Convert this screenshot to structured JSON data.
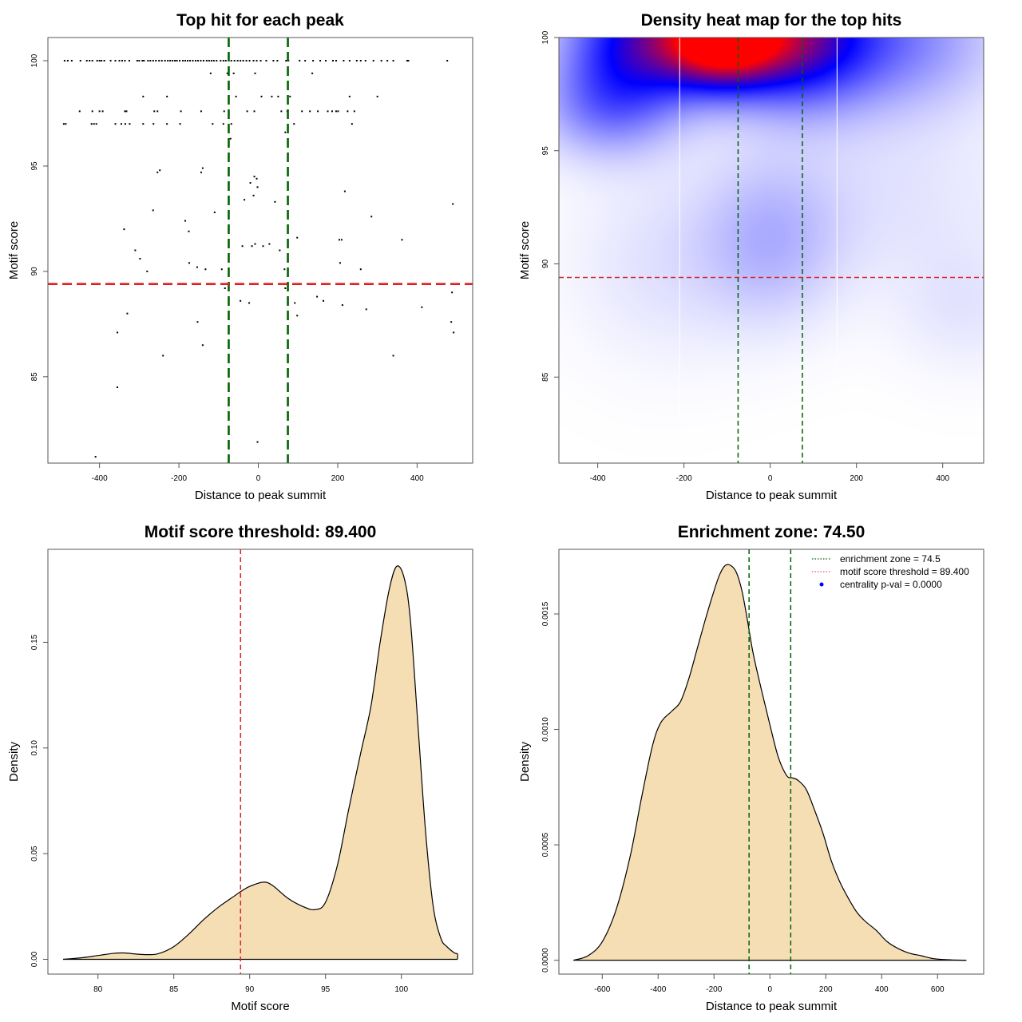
{
  "chart_data": [
    {
      "id": "scatter",
      "type": "scatter",
      "title": "Top hit for each peak",
      "xlabel": "Distance to peak summit",
      "ylabel": "Motif score",
      "xlim": [
        -530,
        540
      ],
      "ylim": [
        80.9,
        101.1
      ],
      "xticks": [
        -400,
        -200,
        0,
        200,
        400
      ],
      "xtick_labels": [
        "-400",
        "-200",
        "0",
        "200",
        "400"
      ],
      "yticks": [
        85,
        90,
        95,
        100
      ],
      "ytick_labels": [
        "85",
        "90",
        "95",
        "100"
      ],
      "vlines": [
        {
          "x": -74.5,
          "color": "#006400",
          "style": "dashed"
        },
        {
          "x": 74.5,
          "color": "#006400",
          "style": "dashed"
        }
      ],
      "hlines": [
        {
          "y": 89.4,
          "color": "#dd2222",
          "style": "dashed"
        }
      ],
      "points": [
        [
          -488,
          100
        ],
        [
          -480,
          100
        ],
        [
          -470,
          100
        ],
        [
          -448,
          100
        ],
        [
          -432,
          100
        ],
        [
          -425,
          100
        ],
        [
          -418,
          100
        ],
        [
          -406,
          100
        ],
        [
          -400,
          100
        ],
        [
          -395,
          100
        ],
        [
          -388,
          100
        ],
        [
          -372,
          100
        ],
        [
          -360,
          100
        ],
        [
          -350,
          100
        ],
        [
          -343,
          100
        ],
        [
          -336,
          100
        ],
        [
          -325,
          100
        ],
        [
          -305,
          100
        ],
        [
          -300,
          100
        ],
        [
          -292,
          100
        ],
        [
          -288,
          100
        ],
        [
          -278,
          100
        ],
        [
          -272,
          100
        ],
        [
          -265,
          100
        ],
        [
          -258,
          100
        ],
        [
          -250,
          100
        ],
        [
          -243,
          100
        ],
        [
          -235,
          100
        ],
        [
          -228,
          100
        ],
        [
          -222,
          100
        ],
        [
          -216,
          100
        ],
        [
          -210,
          100
        ],
        [
          -205,
          100
        ],
        [
          -198,
          100
        ],
        [
          -190,
          100
        ],
        [
          -184,
          100
        ],
        [
          -178,
          100
        ],
        [
          -172,
          100
        ],
        [
          -165,
          100
        ],
        [
          -158,
          100
        ],
        [
          -152,
          100
        ],
        [
          -145,
          100
        ],
        [
          -138,
          100
        ],
        [
          -130,
          100
        ],
        [
          -124,
          100
        ],
        [
          -118,
          100
        ],
        [
          -112,
          100
        ],
        [
          -105,
          100
        ],
        [
          -95,
          100
        ],
        [
          -88,
          100
        ],
        [
          -82,
          100
        ],
        [
          -75,
          100
        ],
        [
          -68,
          100
        ],
        [
          -60,
          100
        ],
        [
          -52,
          100
        ],
        [
          -45,
          100
        ],
        [
          -38,
          100
        ],
        [
          -30,
          100
        ],
        [
          -22,
          100
        ],
        [
          -12,
          100
        ],
        [
          -4,
          100
        ],
        [
          6,
          100
        ],
        [
          20,
          100
        ],
        [
          38,
          100
        ],
        [
          48,
          100
        ],
        [
          70,
          100
        ],
        [
          76,
          100
        ],
        [
          104,
          100
        ],
        [
          118,
          100
        ],
        [
          138,
          100
        ],
        [
          156,
          100
        ],
        [
          170,
          100
        ],
        [
          188,
          100
        ],
        [
          196,
          100
        ],
        [
          215,
          100
        ],
        [
          230,
          100
        ],
        [
          248,
          100
        ],
        [
          258,
          100
        ],
        [
          270,
          100
        ],
        [
          290,
          100
        ],
        [
          310,
          100
        ],
        [
          325,
          100
        ],
        [
          340,
          100
        ],
        [
          375,
          100
        ],
        [
          378,
          100
        ],
        [
          476,
          100
        ],
        [
          -120,
          99.4
        ],
        [
          -78,
          99.4
        ],
        [
          -62,
          99.4
        ],
        [
          -8,
          99.4
        ],
        [
          136,
          99.4
        ],
        [
          -290,
          98.3
        ],
        [
          -230,
          98.3
        ],
        [
          -56,
          98.3
        ],
        [
          8,
          98.3
        ],
        [
          34,
          98.3
        ],
        [
          50,
          98.3
        ],
        [
          80,
          98.3
        ],
        [
          230,
          98.3
        ],
        [
          300,
          98.3
        ],
        [
          -450,
          97.6
        ],
        [
          -418,
          97.6
        ],
        [
          -400,
          97.6
        ],
        [
          -392,
          97.6
        ],
        [
          -336,
          97.6
        ],
        [
          -332,
          97.6
        ],
        [
          -262,
          97.6
        ],
        [
          -254,
          97.6
        ],
        [
          -195,
          97.6
        ],
        [
          -144,
          97.6
        ],
        [
          -86,
          97.6
        ],
        [
          -28,
          97.6
        ],
        [
          -10,
          97.6
        ],
        [
          58,
          97.6
        ],
        [
          73,
          97.6
        ],
        [
          110,
          97.6
        ],
        [
          130,
          97.6
        ],
        [
          150,
          97.6
        ],
        [
          175,
          97.6
        ],
        [
          186,
          97.6
        ],
        [
          196,
          97.6
        ],
        [
          201,
          97.6
        ],
        [
          225,
          97.6
        ],
        [
          242,
          97.6
        ],
        [
          -490,
          97
        ],
        [
          -485,
          97
        ],
        [
          -420,
          97
        ],
        [
          -414,
          97
        ],
        [
          -408,
          97
        ],
        [
          -360,
          97
        ],
        [
          -345,
          97
        ],
        [
          -335,
          97
        ],
        [
          -324,
          97
        ],
        [
          -290,
          97
        ],
        [
          -264,
          97
        ],
        [
          -230,
          97
        ],
        [
          -197,
          97
        ],
        [
          -115,
          97
        ],
        [
          -88,
          97
        ],
        [
          -68,
          97
        ],
        [
          -70,
          96.3
        ],
        [
          68,
          96.6
        ],
        [
          90,
          97
        ],
        [
          236,
          97
        ],
        [
          -254,
          94.7
        ],
        [
          -248,
          94.8
        ],
        [
          -144,
          94.7
        ],
        [
          -140,
          94.9
        ],
        [
          -10,
          94.5
        ],
        [
          -4,
          94.4
        ],
        [
          -20,
          94.2
        ],
        [
          -2,
          94.0
        ],
        [
          218,
          93.8
        ],
        [
          490,
          93.2
        ],
        [
          -12,
          93.6
        ],
        [
          -35,
          93.4
        ],
        [
          42,
          93.3
        ],
        [
          -265,
          92.9
        ],
        [
          -110,
          92.8
        ],
        [
          285,
          92.6
        ],
        [
          -184,
          92.4
        ],
        [
          -175,
          91.9
        ],
        [
          -338,
          92.0
        ],
        [
          204,
          91.5
        ],
        [
          210,
          91.5
        ],
        [
          362,
          91.5
        ],
        [
          98,
          91.6
        ],
        [
          -310,
          91.0
        ],
        [
          -298,
          90.6
        ],
        [
          -280,
          90.0
        ],
        [
          -174,
          90.4
        ],
        [
          -154,
          90.2
        ],
        [
          -133,
          90.1
        ],
        [
          -92,
          90.1
        ],
        [
          -40,
          91.2
        ],
        [
          -16,
          91.2
        ],
        [
          -8,
          91.3
        ],
        [
          12,
          91.2
        ],
        [
          28,
          91.3
        ],
        [
          54,
          91.0
        ],
        [
          66,
          90.1
        ],
        [
          206,
          90.4
        ],
        [
          258,
          90.1
        ],
        [
          -84,
          89.2
        ],
        [
          68,
          89.2
        ],
        [
          488,
          89.0
        ],
        [
          -45,
          88.6
        ],
        [
          -23,
          88.5
        ],
        [
          92,
          88.5
        ],
        [
          148,
          88.8
        ],
        [
          164,
          88.6
        ],
        [
          212,
          88.4
        ],
        [
          272,
          88.2
        ],
        [
          412,
          88.3
        ],
        [
          -330,
          88.0
        ],
        [
          -153,
          87.6
        ],
        [
          98,
          87.9
        ],
        [
          486,
          87.6
        ],
        [
          -355,
          87.1
        ],
        [
          492,
          87.1
        ],
        [
          -140,
          86.5
        ],
        [
          -240,
          86.0
        ],
        [
          340,
          86.0
        ],
        [
          -355,
          84.5
        ],
        [
          -2,
          81.9
        ],
        [
          -410,
          81.2
        ]
      ]
    },
    {
      "id": "heatmap",
      "type": "heatmap",
      "title": "Density heat map for the top hits",
      "xlabel": "Distance to peak summit",
      "ylabel": "Motif score",
      "xlim": [
        -490,
        495
      ],
      "ylim": [
        81.2,
        100
      ],
      "xticks": [
        -400,
        -200,
        0,
        200,
        400
      ],
      "xtick_labels": [
        "-400",
        "-200",
        "0",
        "200",
        "400"
      ],
      "yticks": [
        85,
        90,
        95,
        100
      ],
      "ytick_labels": [
        "85",
        "90",
        "95",
        "100"
      ],
      "color_scale": [
        "#ffffff",
        "#0000ff",
        "#ff0000"
      ],
      "density_peaks": [
        {
          "x": -110,
          "y": 100,
          "sx": 95,
          "sy": 1.5,
          "w": 1.0
        },
        {
          "x": -300,
          "y": 100,
          "sx": 120,
          "sy": 2.0,
          "w": 0.55
        },
        {
          "x": 60,
          "y": 100,
          "sx": 110,
          "sy": 2.0,
          "w": 0.5
        },
        {
          "x": 250,
          "y": 100,
          "sx": 180,
          "sy": 2.2,
          "w": 0.3
        },
        {
          "x": -380,
          "y": 97,
          "sx": 110,
          "sy": 1.6,
          "w": 0.25
        },
        {
          "x": 0,
          "y": 91,
          "sx": 110,
          "sy": 2.5,
          "w": 0.14
        },
        {
          "x": -250,
          "y": 90,
          "sx": 150,
          "sy": 3.0,
          "w": 0.06
        },
        {
          "x": 450,
          "y": 88,
          "sx": 110,
          "sy": 2.0,
          "w": 0.05
        },
        {
          "x": 250,
          "y": 93,
          "sx": 250,
          "sy": 3.0,
          "w": 0.06
        }
      ],
      "white_vlines": [
        -210,
        155
      ],
      "vlines": [
        {
          "x": -74.5,
          "color": "#006400",
          "style": "dashed"
        },
        {
          "x": 74.5,
          "color": "#006400",
          "style": "dashed"
        }
      ],
      "hlines": [
        {
          "y": 89.4,
          "color": "#dd2222",
          "style": "dashed"
        }
      ]
    },
    {
      "id": "score-density",
      "type": "area",
      "title": "Motif score threshold: 89.400",
      "xlabel": "Motif score",
      "ylabel": "Density",
      "xlim": [
        76.7,
        104.7
      ],
      "ylim": [
        -0.007,
        0.194
      ],
      "xticks": [
        80,
        85,
        90,
        95,
        100
      ],
      "xtick_labels": [
        "80",
        "85",
        "90",
        "95",
        "100"
      ],
      "yticks": [
        0.0,
        0.05,
        0.1,
        0.15
      ],
      "ytick_labels": [
        "0.00",
        "0.05",
        "0.10",
        "0.15"
      ],
      "fill_color": "#f5deb3",
      "vlines": [
        {
          "x": 89.4,
          "color": "#dd2222",
          "style": "dashed"
        }
      ],
      "x": [
        77.7,
        79,
        80,
        81,
        81.7,
        82.5,
        83.3,
        84,
        85,
        86,
        87,
        88,
        89,
        89.4,
        90,
        90.9,
        91.5,
        92.5,
        93.5,
        94.3,
        95,
        95.8,
        96.5,
        97.3,
        98,
        98.6,
        99.2,
        99.7,
        100.2,
        100.6,
        101.1,
        101.6,
        102.1,
        102.6,
        103,
        103.5,
        103.7,
        103.7
      ],
      "y": [
        0.0,
        0.0008,
        0.0018,
        0.0028,
        0.003,
        0.0025,
        0.0022,
        0.0027,
        0.006,
        0.012,
        0.019,
        0.025,
        0.03,
        0.032,
        0.0345,
        0.0365,
        0.035,
        0.029,
        0.025,
        0.0235,
        0.027,
        0.045,
        0.07,
        0.097,
        0.12,
        0.15,
        0.175,
        0.186,
        0.18,
        0.16,
        0.11,
        0.06,
        0.025,
        0.01,
        0.006,
        0.003,
        0.0025,
        0.0
      ]
    },
    {
      "id": "distance-density",
      "type": "area",
      "title": "Enrichment zone: 74.50",
      "xlabel": "Distance to peak summit",
      "ylabel": "Density",
      "xlim": [
        -755,
        765
      ],
      "ylim": [
        -6e-05,
        0.00178
      ],
      "xticks": [
        -600,
        -400,
        -200,
        0,
        200,
        400,
        600
      ],
      "xtick_labels": [
        "-600",
        "-400",
        "-200",
        "0",
        "200",
        "400",
        "600"
      ],
      "yticks": [
        0.0,
        0.0005,
        0.001,
        0.0015
      ],
      "ytick_labels": [
        "0.0000",
        "0.0005",
        "0.0010",
        "0.0015"
      ],
      "fill_color": "#f5deb3",
      "vlines": [
        {
          "x": -74.5,
          "color": "#006400",
          "style": "dashed"
        },
        {
          "x": 74.5,
          "color": "#006400",
          "style": "dashed"
        }
      ],
      "x": [
        -703,
        -650,
        -600,
        -550,
        -500,
        -460,
        -420,
        -390,
        -350,
        -320,
        -290,
        -260,
        -230,
        -200,
        -180,
        -160,
        -140,
        -120,
        -100,
        -80,
        -60,
        -30,
        0,
        30,
        60,
        80,
        100,
        130,
        160,
        190,
        220,
        250,
        280,
        310,
        340,
        380,
        420,
        460,
        500,
        540,
        580,
        620,
        660,
        703
      ],
      "y": [
        0.0,
        2e-05,
        8e-05,
        0.00022,
        0.00045,
        0.0007,
        0.00093,
        0.00103,
        0.00108,
        0.00112,
        0.00122,
        0.00135,
        0.00148,
        0.0016,
        0.00167,
        0.00171,
        0.00171,
        0.00168,
        0.0016,
        0.00147,
        0.00133,
        0.00117,
        0.00102,
        0.00088,
        0.0008,
        0.00079,
        0.00078,
        0.00074,
        0.00065,
        0.00055,
        0.00043,
        0.00034,
        0.00027,
        0.00021,
        0.00017,
        0.00013,
        8e-05,
        5e-05,
        3e-05,
        2e-05,
        8e-06,
        3e-06,
        1e-06,
        0.0
      ],
      "legend": {
        "placement": "top-right",
        "entries": [
          {
            "label": "enrichment zone = 74.5",
            "symbol": "dotted-line",
            "color": "#006400"
          },
          {
            "label": "motif score threshold = 89.400",
            "symbol": "dotted-line",
            "color": "#e06060"
          },
          {
            "label": "centrality p-val = 0.0000",
            "symbol": "dot",
            "color": "#0000ff"
          }
        ]
      }
    }
  ]
}
